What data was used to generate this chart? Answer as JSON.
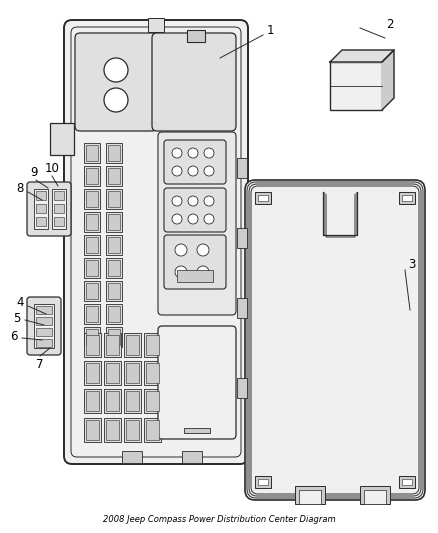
{
  "title": "2008 Jeep Compass Power Distribution Center Diagram",
  "bg_color": "#ffffff",
  "line_color": "#2a2a2a",
  "label_color": "#000000",
  "fig_width": 4.38,
  "fig_height": 5.33,
  "dpi": 100
}
